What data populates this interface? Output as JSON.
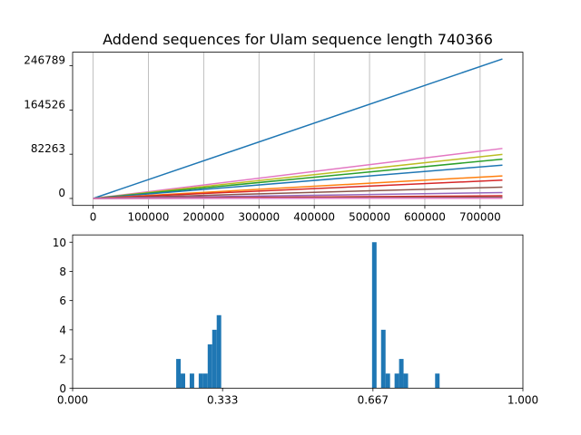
{
  "colors": {
    "series": [
      "#1f77b4",
      "#ff7f0e",
      "#2ca02c",
      "#d62728",
      "#9467bd",
      "#8c564b",
      "#e377c2",
      "#7f7f7f",
      "#bcbd22",
      "#17becf"
    ],
    "grid": "#b0b0b0",
    "hist": "#1f77b4"
  },
  "chart_data": [
    {
      "type": "line",
      "title": "Addend sequences for Ulam sequence length 740366",
      "xlabel": "",
      "ylabel": "",
      "xlim": [
        -37018,
        777384
      ],
      "ylim": [
        -13000,
        272000
      ],
      "grid": "x-only",
      "legend": "none",
      "x_ticks": [
        0,
        100000,
        200000,
        300000,
        400000,
        500000,
        600000,
        700000
      ],
      "x_tick_labels": [
        "0",
        "100000",
        "200000",
        "300000",
        "400000",
        "500000",
        "600000",
        "700000"
      ],
      "y_ticks": [
        0,
        82263,
        164526,
        246789
      ],
      "y_tick_labels": [
        "0",
        "82263",
        "164526",
        "246789"
      ],
      "series": [
        {
          "x": [
            0,
            740366
          ],
          "y": [
            0,
            259400
          ],
          "color": "#1f77b4"
        },
        {
          "x": [
            0,
            740366
          ],
          "y": [
            0,
            93000
          ],
          "color": "#e377c2"
        },
        {
          "x": [
            0,
            740366
          ],
          "y": [
            0,
            82000
          ],
          "color": "#bcbd22"
        },
        {
          "x": [
            0,
            740366
          ],
          "y": [
            0,
            73000
          ],
          "color": "#2ca02c"
        },
        {
          "x": [
            0,
            740366
          ],
          "y": [
            0,
            62000
          ],
          "color": "#1f77b4"
        },
        {
          "x": [
            0,
            740366
          ],
          "y": [
            0,
            42000
          ],
          "color": "#ff7f0e"
        },
        {
          "x": [
            0,
            740366
          ],
          "y": [
            0,
            34000
          ],
          "color": "#d62728"
        },
        {
          "x": [
            0,
            740366
          ],
          "y": [
            0,
            21000
          ],
          "color": "#8c564b"
        },
        {
          "x": [
            0,
            740366
          ],
          "y": [
            0,
            11000
          ],
          "color": "#9467bd"
        },
        {
          "x": [
            0,
            740366
          ],
          "y": [
            0,
            5000
          ],
          "color": "#d62728"
        },
        {
          "x": [
            0,
            740366
          ],
          "y": [
            0,
            2500
          ],
          "color": "#8c564b"
        },
        {
          "x": [
            0,
            740366
          ],
          "y": [
            0,
            1200
          ],
          "color": "#7f7f7f"
        },
        {
          "x": [
            0,
            740366
          ],
          "y": [
            0,
            500
          ],
          "color": "#e377c2"
        }
      ]
    },
    {
      "type": "bar",
      "subtype": "histogram",
      "title": "",
      "xlabel": "",
      "ylabel": "",
      "xlim": [
        0,
        1
      ],
      "ylim": [
        0,
        10.5
      ],
      "bin_width": 0.01,
      "x_ticks": [
        0,
        0.333,
        0.667,
        1.0
      ],
      "x_tick_labels": [
        "0.000",
        "0.333",
        "0.667",
        "1.000"
      ],
      "y_ticks": [
        0,
        2,
        4,
        6,
        8,
        10
      ],
      "y_tick_labels": [
        "0",
        "2",
        "4",
        "6",
        "8",
        "10"
      ],
      "bins": [
        {
          "x": 0.23,
          "count": 2
        },
        {
          "x": 0.24,
          "count": 1
        },
        {
          "x": 0.26,
          "count": 1
        },
        {
          "x": 0.28,
          "count": 1
        },
        {
          "x": 0.29,
          "count": 1
        },
        {
          "x": 0.3,
          "count": 3
        },
        {
          "x": 0.31,
          "count": 4
        },
        {
          "x": 0.32,
          "count": 5
        },
        {
          "x": 0.665,
          "count": 10
        },
        {
          "x": 0.685,
          "count": 4
        },
        {
          "x": 0.695,
          "count": 1
        },
        {
          "x": 0.715,
          "count": 1
        },
        {
          "x": 0.725,
          "count": 2
        },
        {
          "x": 0.735,
          "count": 1
        },
        {
          "x": 0.805,
          "count": 1
        }
      ]
    }
  ]
}
